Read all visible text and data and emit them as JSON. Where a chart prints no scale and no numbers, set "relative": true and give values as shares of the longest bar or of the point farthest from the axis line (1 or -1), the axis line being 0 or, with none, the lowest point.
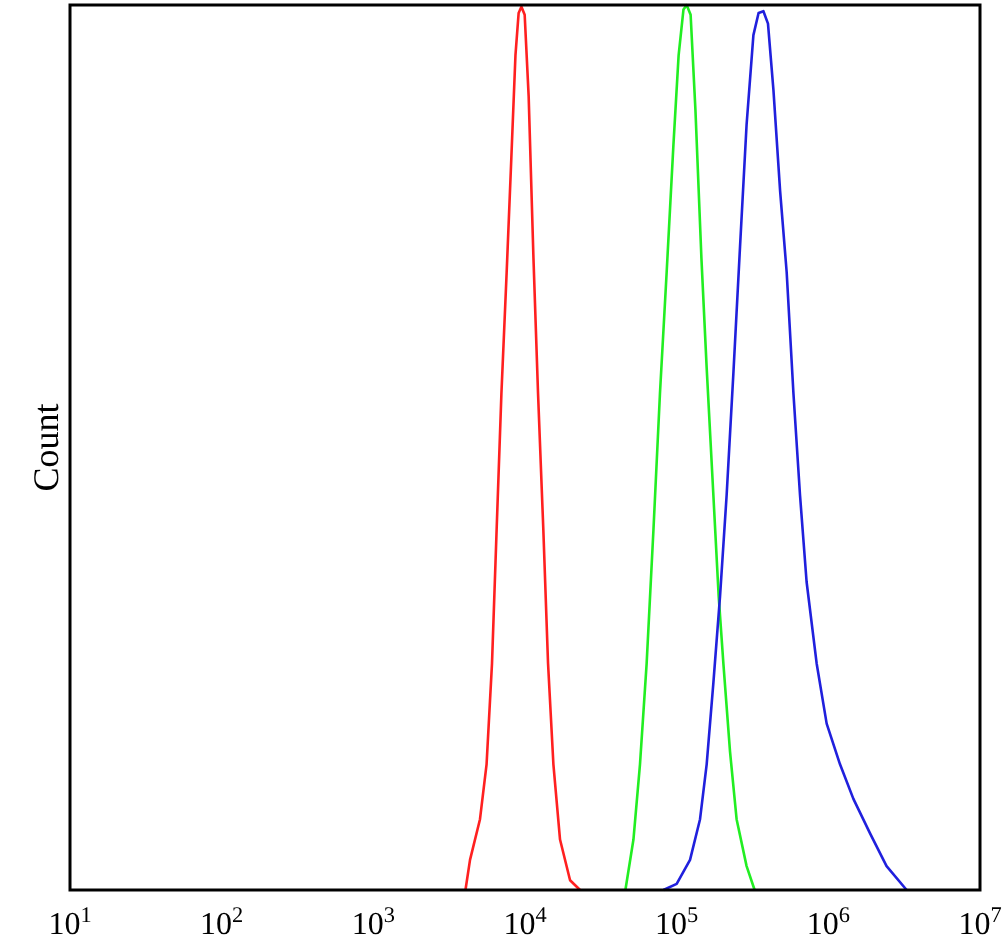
{
  "chart_data": {
    "type": "line",
    "ylabel": "Count",
    "log": "x",
    "relative": true,
    "xlim": [
      10,
      10000000
    ],
    "xticks": [
      {
        "value": 10,
        "label": "10$^{1}$"
      },
      {
        "value": 100,
        "label": "10$^{2}$"
      },
      {
        "value": 1000,
        "label": "10$^{3}$"
      },
      {
        "value": 10000,
        "label": "10$^{4}$"
      },
      {
        "value": 100000,
        "label": "10$^{5}$"
      },
      {
        "value": 1000000,
        "label": "10$^{6}$"
      },
      {
        "value": 10000000,
        "label": "10$^{7}$"
      }
    ],
    "series": [
      {
        "color": "#ff2020",
        "x": [
          4050,
          4340,
          5050,
          5580,
          6060,
          6500,
          6990,
          7570,
          8130,
          8650,
          9080,
          9470,
          9950,
          10570,
          11370,
          12190,
          13210,
          14190,
          15390,
          17020,
          19820,
          23070
        ],
        "values": [
          0,
          0.034,
          0.08,
          0.142,
          0.256,
          0.407,
          0.561,
          0.698,
          0.828,
          0.943,
          0.991,
          0.998,
          0.989,
          0.897,
          0.714,
          0.561,
          0.407,
          0.256,
          0.142,
          0.057,
          0.011,
          0
        ]
      },
      {
        "color": "#22ee22",
        "x": [
          45920,
          51880,
          57300,
          63400,
          70300,
          77600,
          85900,
          95200,
          103000,
          110900,
          116400,
          123600,
          133000,
          145600,
          157700,
          174600,
          189200,
          203200,
          224900,
          248400,
          289100,
          326600
        ],
        "values": [
          0,
          0.057,
          0.142,
          0.256,
          0.407,
          0.561,
          0.698,
          0.842,
          0.943,
          0.995,
          1,
          0.989,
          0.881,
          0.714,
          0.59,
          0.446,
          0.332,
          0.256,
          0.156,
          0.08,
          0.027,
          0
        ]
      },
      {
        "color": "#2020dd",
        "x": [
          81800,
          100000,
          122500,
          142600,
          157700,
          174600,
          193200,
          213500,
          236600,
          261700,
          289100,
          320600,
          346800,
          373300,
          400000,
          434500,
          480800,
          531300,
          588800,
          650600,
          719100,
          837500,
          975000,
          1194000,
          1463000,
          1884000,
          2421000,
          3283000
        ],
        "values": [
          0,
          0.007,
          0.034,
          0.08,
          0.142,
          0.234,
          0.332,
          0.446,
          0.584,
          0.727,
          0.865,
          0.966,
          0.991,
          0.993,
          0.979,
          0.904,
          0.79,
          0.698,
          0.561,
          0.446,
          0.348,
          0.256,
          0.188,
          0.142,
          0.103,
          0.064,
          0.027,
          0
        ]
      }
    ]
  }
}
